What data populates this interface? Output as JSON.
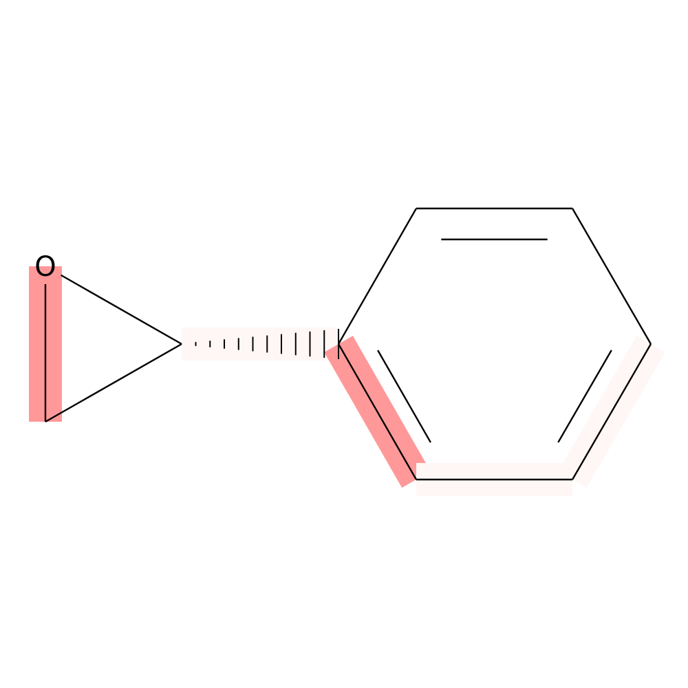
{
  "molecule": {
    "atoms": [
      {
        "id": "O1",
        "symbol": "O",
        "label": "O"
      },
      {
        "id": "C2",
        "symbol": "C",
        "label": ""
      },
      {
        "id": "C3",
        "symbol": "C",
        "label": ""
      },
      {
        "id": "C4",
        "symbol": "C",
        "label": ""
      },
      {
        "id": "C5",
        "symbol": "C",
        "label": ""
      },
      {
        "id": "C6",
        "symbol": "C",
        "label": ""
      },
      {
        "id": "C7",
        "symbol": "C",
        "label": ""
      },
      {
        "id": "C8",
        "symbol": "C",
        "label": ""
      },
      {
        "id": "C9",
        "symbol": "C",
        "label": ""
      }
    ],
    "bonds": [
      {
        "from": "O1",
        "to": "C2",
        "order": 1,
        "highlight": "strong"
      },
      {
        "from": "O1",
        "to": "C3",
        "order": 1
      },
      {
        "from": "C2",
        "to": "C3",
        "order": 1
      },
      {
        "from": "C3",
        "to": "C4",
        "order": 1,
        "stereo": "hashed-wedge",
        "highlight": "faint"
      },
      {
        "from": "C4",
        "to": "C5",
        "order": 2,
        "highlight": "strong"
      },
      {
        "from": "C5",
        "to": "C6",
        "order": 1,
        "highlight": "faint"
      },
      {
        "from": "C6",
        "to": "C7",
        "order": 2,
        "highlight": "faint"
      },
      {
        "from": "C7",
        "to": "C8",
        "order": 1
      },
      {
        "from": "C8",
        "to": "C9",
        "order": 2
      },
      {
        "from": "C9",
        "to": "C4",
        "order": 1
      }
    ]
  },
  "colors": {
    "bond": "#000000",
    "highlight_strong": "#ff9999",
    "highlight_faint": "#fff7f6"
  }
}
